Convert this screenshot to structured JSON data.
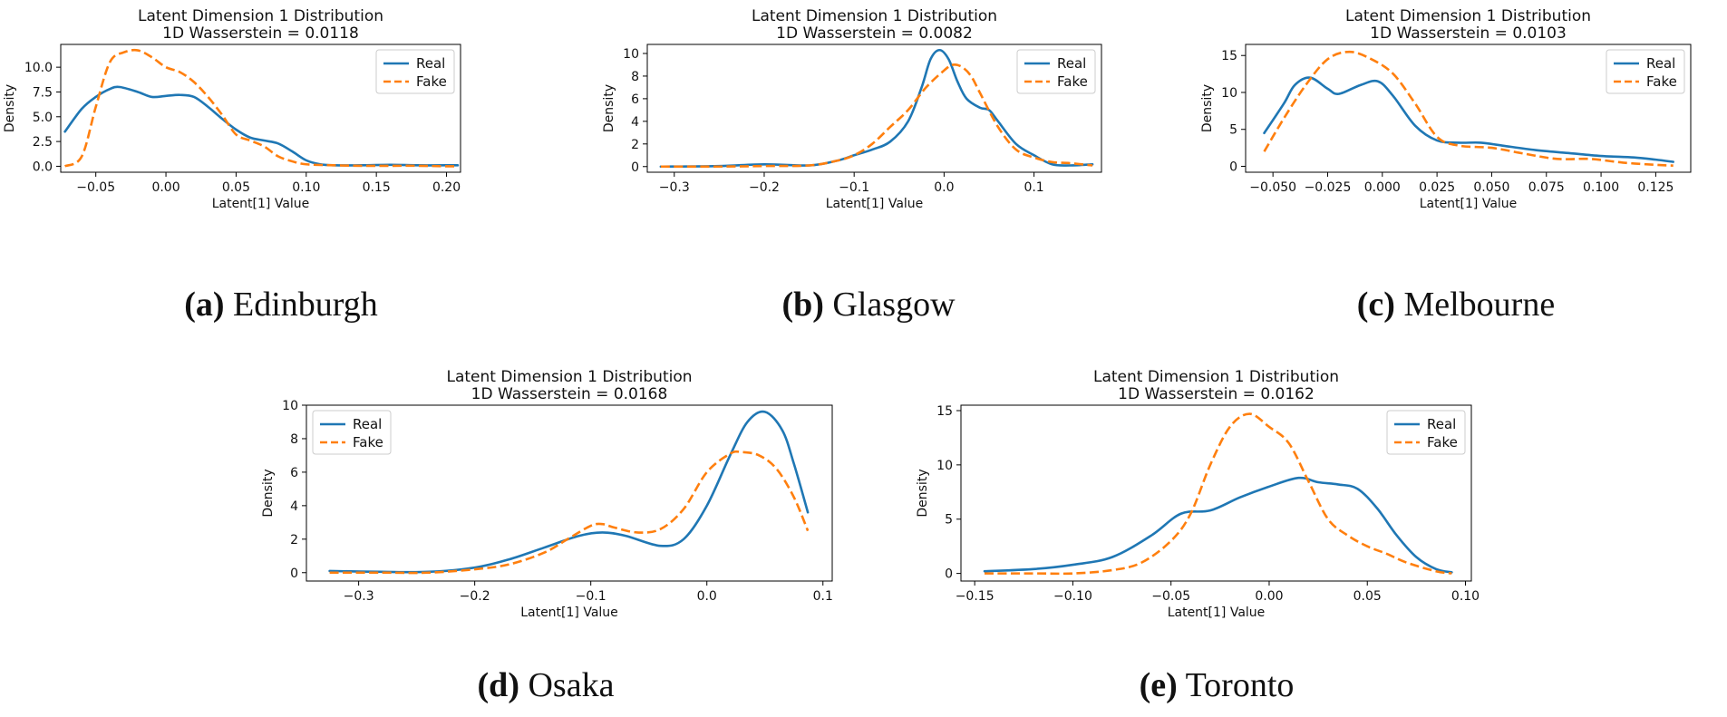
{
  "figure": {
    "colors": {
      "real": "#1f77b4",
      "fake": "#ff7f0e"
    }
  },
  "chart_data": [
    {
      "type": "line",
      "title": "Latent Dimension 1 Distribution",
      "subtitle": "1D Wasserstein = 0.0118",
      "xlabel": "Latent[1] Value",
      "ylabel": "Density",
      "xlim": [
        -0.075,
        0.21
      ],
      "ylim": [
        -0.6,
        12.3
      ],
      "xticks": [
        -0.05,
        0.0,
        0.05,
        0.1,
        0.15,
        0.2
      ],
      "xticklabels": [
        "−0.05",
        "0.00",
        "0.05",
        "0.10",
        "0.15",
        "0.20"
      ],
      "yticks": [
        0.0,
        2.5,
        5.0,
        7.5,
        10.0
      ],
      "yticklabels": [
        "0.0",
        "2.5",
        "5.0",
        "7.5",
        "10.0"
      ],
      "legend": "top-right",
      "caption_label": "(a)",
      "caption_text": "Edinburgh",
      "series": [
        {
          "name": "Real",
          "style": "solid",
          "x": [
            -0.072,
            -0.06,
            -0.05,
            -0.04,
            -0.033,
            -0.02,
            -0.01,
            0.0,
            0.01,
            0.02,
            0.03,
            0.04,
            0.05,
            0.06,
            0.07,
            0.08,
            0.09,
            0.1,
            0.11,
            0.12,
            0.14,
            0.16,
            0.18,
            0.2,
            0.208
          ],
          "y": [
            3.5,
            5.8,
            7.0,
            7.8,
            8.0,
            7.5,
            7.0,
            7.1,
            7.2,
            7.0,
            6.0,
            4.8,
            3.7,
            2.9,
            2.6,
            2.3,
            1.5,
            0.6,
            0.2,
            0.1,
            0.1,
            0.15,
            0.1,
            0.1,
            0.1
          ]
        },
        {
          "name": "Fake",
          "style": "dashed",
          "x": [
            -0.072,
            -0.06,
            -0.05,
            -0.04,
            -0.03,
            -0.02,
            -0.01,
            0.0,
            0.01,
            0.02,
            0.03,
            0.04,
            0.05,
            0.06,
            0.07,
            0.08,
            0.09,
            0.1,
            0.12,
            0.14,
            0.16,
            0.18,
            0.2,
            0.208
          ],
          "y": [
            0.0,
            1.0,
            6.0,
            10.5,
            11.5,
            11.7,
            11.0,
            10.0,
            9.5,
            8.5,
            7.0,
            5.2,
            3.2,
            2.6,
            2.0,
            1.0,
            0.5,
            0.2,
            0.1,
            0.05,
            0.05,
            0.05,
            0.0,
            0.0
          ]
        }
      ]
    },
    {
      "type": "line",
      "title": "Latent Dimension 1 Distribution",
      "subtitle": "1D Wasserstein = 0.0082",
      "xlabel": "Latent[1] Value",
      "ylabel": "Density",
      "xlim": [
        -0.33,
        0.175
      ],
      "ylim": [
        -0.5,
        10.8
      ],
      "xticks": [
        -0.3,
        -0.2,
        -0.1,
        0.0,
        0.1
      ],
      "xticklabels": [
        "−0.3",
        "−0.2",
        "−0.1",
        "0.0",
        "0.1"
      ],
      "yticks": [
        0,
        2,
        4,
        6,
        8,
        10
      ],
      "yticklabels": [
        "0",
        "2",
        "4",
        "6",
        "8",
        "10"
      ],
      "legend": "top-right",
      "caption_label": "(b)",
      "caption_text": "Glasgow",
      "series": [
        {
          "name": "Real",
          "style": "solid",
          "x": [
            -0.315,
            -0.25,
            -0.2,
            -0.15,
            -0.12,
            -0.1,
            -0.08,
            -0.06,
            -0.04,
            -0.025,
            -0.015,
            -0.005,
            0.005,
            0.015,
            0.025,
            0.04,
            0.05,
            0.06,
            0.08,
            0.1,
            0.12,
            0.14,
            0.165
          ],
          "y": [
            0.0,
            0.05,
            0.2,
            0.1,
            0.5,
            1.0,
            1.5,
            2.2,
            4.0,
            7.0,
            9.5,
            10.3,
            9.5,
            7.5,
            6.0,
            5.2,
            5.0,
            4.0,
            2.0,
            1.0,
            0.2,
            0.1,
            0.2
          ]
        },
        {
          "name": "Fake",
          "style": "dashed",
          "x": [
            -0.315,
            -0.25,
            -0.2,
            -0.15,
            -0.12,
            -0.1,
            -0.08,
            -0.06,
            -0.04,
            -0.02,
            0.0,
            0.01,
            0.02,
            0.03,
            0.04,
            0.06,
            0.08,
            0.1,
            0.12,
            0.14,
            0.165
          ],
          "y": [
            0.0,
            0.0,
            0.05,
            0.1,
            0.5,
            1.0,
            2.0,
            3.5,
            5.0,
            7.0,
            8.5,
            9.0,
            8.8,
            8.0,
            6.5,
            3.5,
            1.5,
            0.8,
            0.4,
            0.3,
            0.1
          ]
        }
      ]
    },
    {
      "type": "line",
      "title": "Latent Dimension 1 Distribution",
      "subtitle": "1D Wasserstein = 0.0103",
      "xlabel": "Latent[1] Value",
      "ylabel": "Density",
      "xlim": [
        -0.0625,
        0.141
      ],
      "ylim": [
        -0.8,
        16.5
      ],
      "xticks": [
        -0.05,
        -0.025,
        0.0,
        0.025,
        0.05,
        0.075,
        0.1,
        0.125
      ],
      "xticklabels": [
        "−0.050",
        "−0.025",
        "0.000",
        "0.025",
        "0.050",
        "0.075",
        "0.100",
        "0.125"
      ],
      "yticks": [
        0,
        5,
        10,
        15
      ],
      "yticklabels": [
        "0",
        "5",
        "10",
        "15"
      ],
      "legend": "top-right",
      "caption_label": "(c)",
      "caption_text": "Melbourne",
      "series": [
        {
          "name": "Real",
          "style": "solid",
          "x": [
            -0.054,
            -0.045,
            -0.04,
            -0.033,
            -0.025,
            -0.02,
            -0.01,
            -0.002,
            0.005,
            0.015,
            0.025,
            0.035,
            0.045,
            0.055,
            0.07,
            0.085,
            0.1,
            0.115,
            0.125,
            0.133
          ],
          "y": [
            4.5,
            8.5,
            11.0,
            12.0,
            10.5,
            9.8,
            11.0,
            11.5,
            9.5,
            5.5,
            3.5,
            3.2,
            3.2,
            2.8,
            2.2,
            1.8,
            1.4,
            1.2,
            0.9,
            0.6
          ]
        },
        {
          "name": "Fake",
          "style": "dashed",
          "x": [
            -0.054,
            -0.045,
            -0.035,
            -0.025,
            -0.015,
            -0.005,
            0.005,
            0.015,
            0.025,
            0.035,
            0.05,
            0.065,
            0.08,
            0.095,
            0.11,
            0.125,
            0.133
          ],
          "y": [
            2.0,
            6.5,
            11.0,
            14.5,
            15.5,
            14.5,
            12.5,
            8.5,
            4.0,
            2.8,
            2.5,
            1.7,
            1.0,
            1.0,
            0.5,
            0.2,
            0.1
          ]
        }
      ]
    },
    {
      "type": "line",
      "title": "Latent Dimension 1 Distribution",
      "subtitle": "1D Wasserstein = 0.0168",
      "xlabel": "Latent[1] Value",
      "ylabel": "Density",
      "xlim": [
        -0.345,
        0.108
      ],
      "ylim": [
        -0.5,
        10.0
      ],
      "xticks": [
        -0.3,
        -0.2,
        -0.1,
        0.0,
        0.1
      ],
      "xticklabels": [
        "−0.3",
        "−0.2",
        "−0.1",
        "0.0",
        "0.1"
      ],
      "yticks": [
        0,
        2,
        4,
        6,
        8,
        10
      ],
      "yticklabels": [
        "0",
        "2",
        "4",
        "6",
        "8",
        "10"
      ],
      "legend": "top-left",
      "caption_label": "(d)",
      "caption_text": "Osaka",
      "series": [
        {
          "name": "Real",
          "style": "solid",
          "x": [
            -0.325,
            -0.28,
            -0.24,
            -0.2,
            -0.17,
            -0.14,
            -0.11,
            -0.09,
            -0.07,
            -0.04,
            -0.02,
            0.0,
            0.02,
            0.035,
            0.05,
            0.065,
            0.075,
            0.087
          ],
          "y": [
            0.1,
            0.05,
            0.05,
            0.3,
            0.8,
            1.5,
            2.2,
            2.4,
            2.2,
            1.6,
            2.0,
            4.0,
            7.0,
            9.0,
            9.6,
            8.5,
            6.5,
            3.6
          ]
        },
        {
          "name": "Fake",
          "style": "dashed",
          "x": [
            -0.325,
            -0.28,
            -0.24,
            -0.2,
            -0.17,
            -0.14,
            -0.12,
            -0.1,
            -0.09,
            -0.08,
            -0.06,
            -0.04,
            -0.02,
            0.0,
            0.02,
            0.03,
            0.045,
            0.06,
            0.075,
            0.087
          ],
          "y": [
            0.0,
            0.0,
            0.0,
            0.2,
            0.5,
            1.2,
            2.0,
            2.8,
            2.9,
            2.7,
            2.4,
            2.6,
            3.8,
            6.0,
            7.1,
            7.2,
            7.0,
            6.2,
            4.5,
            2.5
          ]
        }
      ]
    },
    {
      "type": "line",
      "title": "Latent Dimension 1 Distribution",
      "subtitle": "1D Wasserstein = 0.0162",
      "xlabel": "Latent[1] Value",
      "ylabel": "Density",
      "xlim": [
        -0.157,
        0.103
      ],
      "ylim": [
        -0.7,
        15.5
      ],
      "xticks": [
        -0.15,
        -0.1,
        -0.05,
        0.0,
        0.05,
        0.1
      ],
      "xticklabels": [
        "−0.15",
        "−0.10",
        "−0.05",
        "0.00",
        "0.05",
        "0.10"
      ],
      "yticks": [
        0,
        5,
        10,
        15
      ],
      "yticklabels": [
        "0",
        "5",
        "10",
        "15"
      ],
      "legend": "top-right",
      "caption_label": "(e)",
      "caption_text": "Toronto",
      "series": [
        {
          "name": "Real",
          "style": "solid",
          "x": [
            -0.145,
            -0.12,
            -0.1,
            -0.08,
            -0.06,
            -0.045,
            -0.03,
            -0.015,
            0.0,
            0.015,
            0.025,
            0.035,
            0.045,
            0.055,
            0.065,
            0.075,
            0.085,
            0.093
          ],
          "y": [
            0.2,
            0.4,
            0.8,
            1.5,
            3.5,
            5.5,
            5.8,
            7.0,
            8.0,
            8.8,
            8.4,
            8.2,
            7.8,
            6.0,
            3.5,
            1.5,
            0.4,
            0.1
          ]
        },
        {
          "name": "Fake",
          "style": "dashed",
          "x": [
            -0.145,
            -0.12,
            -0.1,
            -0.08,
            -0.065,
            -0.05,
            -0.04,
            -0.03,
            -0.02,
            -0.01,
            0.0,
            0.01,
            0.02,
            0.03,
            0.04,
            0.05,
            0.06,
            0.07,
            0.085,
            0.093
          ],
          "y": [
            0.0,
            0.0,
            0.0,
            0.3,
            1.0,
            3.0,
            5.5,
            10.0,
            13.5,
            14.7,
            13.5,
            12.0,
            8.5,
            5.0,
            3.5,
            2.5,
            1.8,
            1.0,
            0.2,
            0.0
          ]
        }
      ]
    }
  ]
}
